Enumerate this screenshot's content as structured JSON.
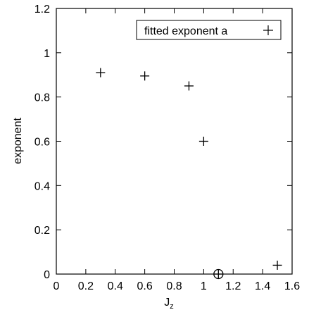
{
  "chart_data": {
    "type": "scatter",
    "title": "",
    "xlabel_main": "J",
    "xlabel_sub": "z",
    "ylabel": "exponent",
    "xlim": [
      0,
      1.6
    ],
    "ylim": [
      0,
      1.2
    ],
    "xticks": [
      0,
      0.2,
      0.4,
      0.6,
      0.8,
      1,
      1.2,
      1.4,
      1.6
    ],
    "xtick_labels": [
      "0",
      "0.2",
      "0.4",
      "0.6",
      "0.8",
      "1",
      "1.2",
      "1.4",
      "1.6"
    ],
    "yticks": [
      0,
      0.2,
      0.4,
      0.6,
      0.8,
      1,
      1.2
    ],
    "ytick_labels": [
      "0",
      "0.2",
      "0.4",
      "0.6",
      "0.8",
      "1",
      "1.2"
    ],
    "grid": false,
    "legend_position": "top-right",
    "series": [
      {
        "name": "fitted exponent a",
        "marker": "plus",
        "x": [
          0.3,
          0.6,
          0.9,
          1.0,
          1.5
        ],
        "y": [
          0.91,
          0.895,
          0.85,
          0.6,
          0.04
        ]
      }
    ],
    "annotations": [
      {
        "type": "circled-plus-marker",
        "x": 1.1,
        "y": 0
      }
    ]
  }
}
